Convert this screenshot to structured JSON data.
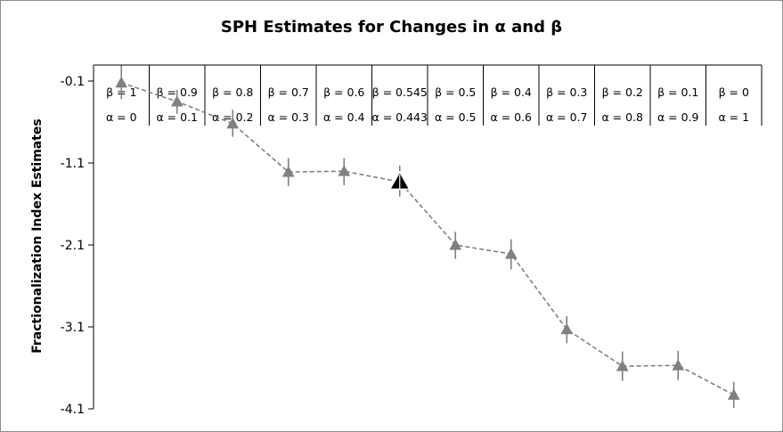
{
  "chart_data": {
    "type": "line",
    "title": "SPH Estimates for Changes in α and β",
    "ylabel": "Fractionalization Index Estimates",
    "xlabel": "",
    "ylim": [
      -4.1,
      -0.1
    ],
    "yticks": [
      "-0.1",
      "-1.1",
      "-2.1",
      "-3.1",
      "-4.1"
    ],
    "grid": false,
    "legend": "none",
    "marker": "triangle",
    "line_style": "dashed",
    "series_color": "#808080",
    "highlight_color": "#000000",
    "categories": [
      {
        "beta": "β = 1",
        "alpha": "α = 0"
      },
      {
        "beta": "β = 0.9",
        "alpha": "α = 0.1"
      },
      {
        "beta": "β = 0.8",
        "alpha": "α = 0.2"
      },
      {
        "beta": "β = 0.7",
        "alpha": "α = 0.3"
      },
      {
        "beta": "β = 0.6",
        "alpha": "α = 0.4"
      },
      {
        "beta": "β = 0.545",
        "alpha": "α = 0.443"
      },
      {
        "beta": "β = 0.5",
        "alpha": "α = 0.5"
      },
      {
        "beta": "β = 0.4",
        "alpha": "α = 0.6"
      },
      {
        "beta": "β = 0.3",
        "alpha": "α = 0.7"
      },
      {
        "beta": "β = 0.2",
        "alpha": "α = 0.8"
      },
      {
        "beta": "β = 0.1",
        "alpha": "α = 0.9"
      },
      {
        "beta": "β = 0",
        "alpha": "α = 1"
      }
    ],
    "series": [
      {
        "values": [
          -0.12,
          -0.35,
          -0.62,
          -1.21,
          -1.2,
          -1.33,
          -2.1,
          -2.21,
          -3.13,
          -3.58,
          -3.57,
          -3.93
        ],
        "error_low": [
          -0.32,
          -0.5,
          -0.78,
          -1.38,
          -1.37,
          -1.51,
          -2.27,
          -2.4,
          -3.3,
          -3.76,
          -3.75,
          -4.09
        ],
        "error_high": [
          0.09,
          -0.21,
          -0.45,
          -1.04,
          -1.04,
          -1.13,
          -1.94,
          -2.03,
          -2.97,
          -3.4,
          -3.39,
          -3.77
        ],
        "highlight_index": 5
      }
    ]
  }
}
